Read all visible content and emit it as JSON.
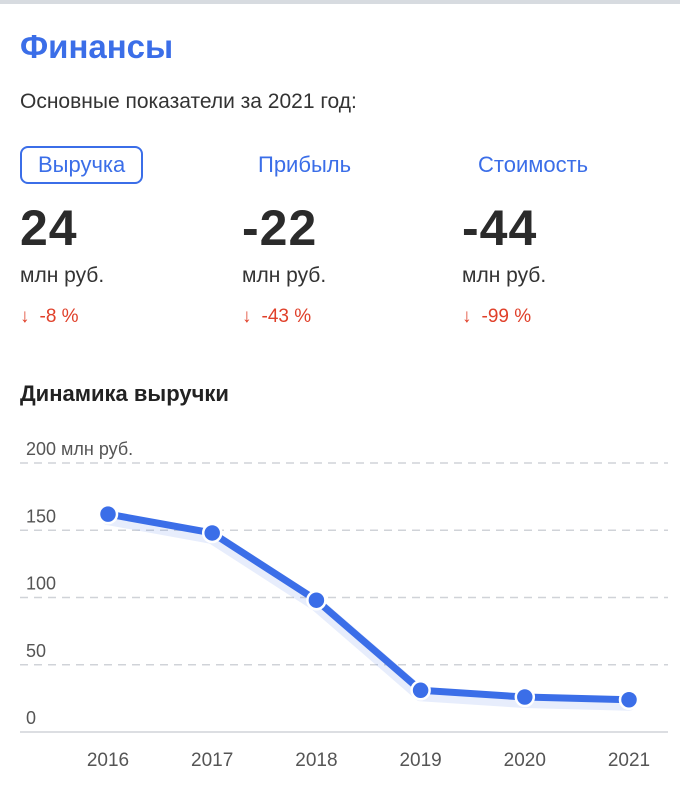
{
  "header": {
    "title": "Финансы",
    "subtitle": "Основные показатели за 2021 год:"
  },
  "metrics": [
    {
      "label": "Выручка",
      "value": "24",
      "unit": "млн руб.",
      "change": "-8 %",
      "change_icon": "arrow-down-icon",
      "active": true
    },
    {
      "label": "Прибыль",
      "value": "-22",
      "unit": "млн руб.",
      "change": "-43 %",
      "change_icon": "arrow-down-icon",
      "active": false
    },
    {
      "label": "Стоимость",
      "value": "-44",
      "unit": "млн руб.",
      "change": "-99 %",
      "change_icon": "arrow-down-icon",
      "active": false
    }
  ],
  "colors": {
    "accent": "#3b6ee8",
    "negative": "#e0402a",
    "grid": "#d0d3d8",
    "axis_text": "#555555"
  },
  "chart_data": {
    "type": "line",
    "title": "Динамика выручки",
    "ylabel": "млн руб.",
    "x": [
      "2016",
      "2017",
      "2018",
      "2019",
      "2020",
      "2021"
    ],
    "y": [
      162,
      148,
      98,
      31,
      26,
      24
    ],
    "ylim": [
      0,
      200
    ],
    "y_ticks": [
      {
        "value": 0,
        "label": "0"
      },
      {
        "value": 50,
        "label": "50"
      },
      {
        "value": 100,
        "label": "100"
      },
      {
        "value": 150,
        "label": "150"
      },
      {
        "value": 200,
        "label": "200 млн руб."
      }
    ],
    "grid": true,
    "legend": "none"
  }
}
